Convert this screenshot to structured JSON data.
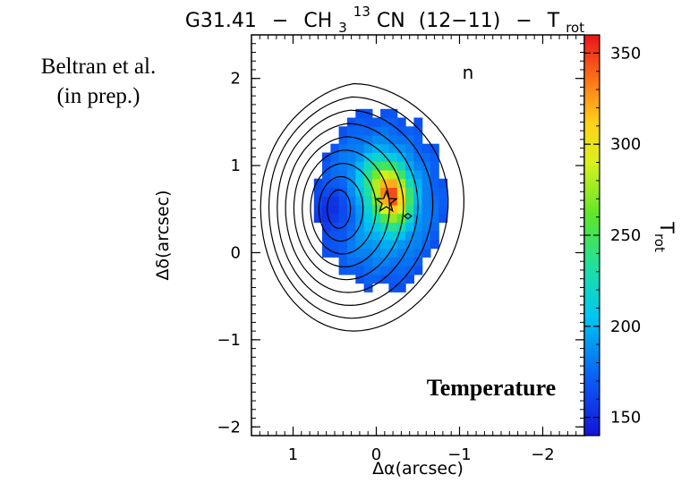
{
  "credit": {
    "line1": "Beltran et al.",
    "line2": "(in prep.)"
  },
  "chart_data": {
    "type": "heatmap",
    "title": {
      "source": "G31.41",
      "sep1": "−",
      "molecule_pre": "CH",
      "molecule_sub": "3",
      "molecule_sup": "13",
      "molecule_post": "CN",
      "transition": "(12−11)",
      "sep2": "−",
      "quantity": "T",
      "quantity_sub": "rot"
    },
    "xlabel": "Δα(arcsec)",
    "ylabel": "Δδ(arcsec)",
    "xlim": [
      1.5,
      -2.5
    ],
    "ylim": [
      -2.1,
      2.5
    ],
    "x_ticks": [
      {
        "v": 1,
        "label": "1"
      },
      {
        "v": 0,
        "label": "0"
      },
      {
        "v": -1,
        "label": "−1"
      },
      {
        "v": -2,
        "label": "−2"
      }
    ],
    "y_ticks": [
      {
        "v": 2,
        "label": "2"
      },
      {
        "v": 1,
        "label": "1"
      },
      {
        "v": 0,
        "label": "0"
      },
      {
        "v": -1,
        "label": "−1"
      },
      {
        "v": -2,
        "label": "−2"
      }
    ],
    "colorbar": {
      "label": "T",
      "label_sub": "rot",
      "range": [
        140,
        360
      ],
      "ticks": [
        {
          "v": 150,
          "label": "150"
        },
        {
          "v": 200,
          "label": "200"
        },
        {
          "v": 250,
          "label": "250"
        },
        {
          "v": 300,
          "label": "300"
        },
        {
          "v": 350,
          "label": "350"
        }
      ]
    },
    "temperature_map": {
      "description_units": "K",
      "pixel_size_arcsec": 0.1,
      "peak": {
        "x": -0.22,
        "y": 0.62,
        "value": 345
      },
      "secondary_peak": {
        "x": -0.05,
        "y": 0.85,
        "value": 300
      },
      "cool_region": {
        "x": 0.45,
        "y": 0.5,
        "value": 215
      },
      "edge_value": 165
    },
    "contours": {
      "center": {
        "x": 0.45,
        "y": 0.5
      },
      "levels": 9
    },
    "markers": [
      {
        "type": "star",
        "x": -0.12,
        "y": 0.58
      },
      {
        "type": "small-diamond",
        "x": -0.38,
        "y": 0.42
      }
    ],
    "annotations": [
      {
        "text": "n",
        "x": -1.05,
        "y": 2.05
      },
      {
        "text": "Temperature",
        "x": -1.2,
        "y": -1.6
      }
    ]
  }
}
